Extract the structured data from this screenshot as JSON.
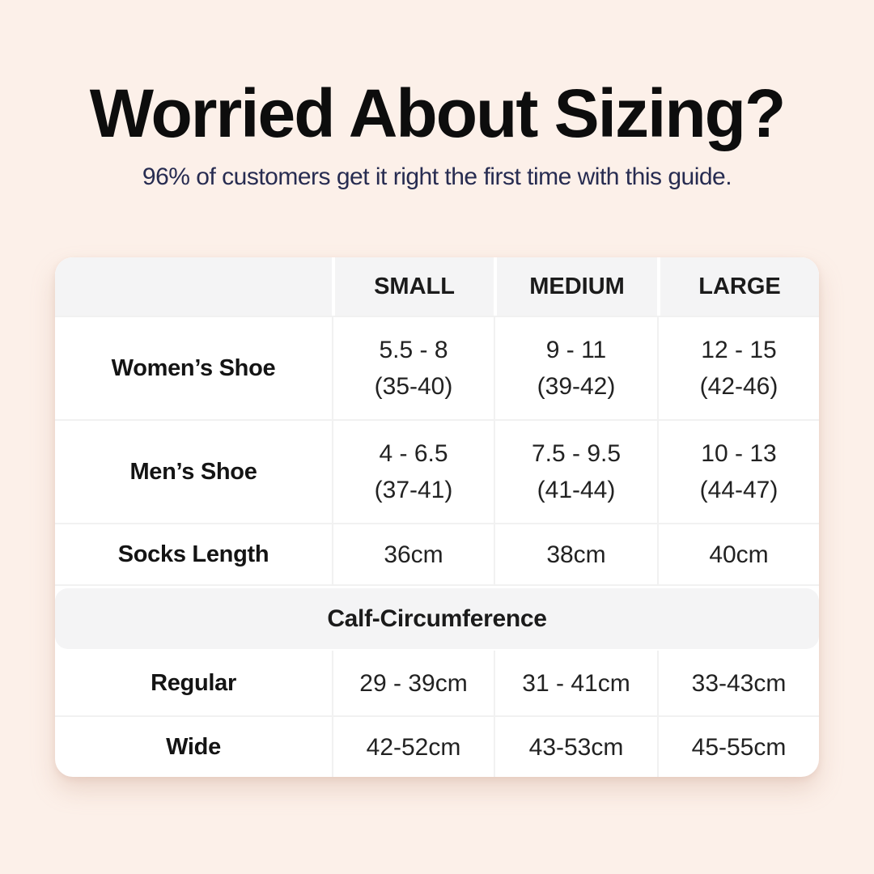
{
  "colors": {
    "background": "#fcf0e9",
    "card_background": "#ffffff",
    "header_cell_background": "#f4f4f5",
    "divider": "#f1f1f1",
    "title_text": "#0d0d0d",
    "subtitle_text": "#272c51",
    "table_text": "#1f1f1f"
  },
  "header": {
    "title": "Worried About Sizing?",
    "subtitle": "96% of customers get it right the first time with this guide."
  },
  "table": {
    "columns": [
      "",
      "SMALL",
      "MEDIUM",
      "LARGE"
    ],
    "shoe_rows": [
      {
        "label": "Women’s Shoe",
        "cells": [
          {
            "line1": "5.5 - 8",
            "line2": "(35-40)"
          },
          {
            "line1": "9 - 11",
            "line2": "(39-42)"
          },
          {
            "line1": "12 - 15",
            "line2": "(42-46)"
          }
        ]
      },
      {
        "label": "Men’s Shoe",
        "cells": [
          {
            "line1": "4 - 6.5",
            "line2": "(37-41)"
          },
          {
            "line1": "7.5 - 9.5",
            "line2": "(41-44)"
          },
          {
            "line1": "10 - 13",
            "line2": "(44-47)"
          }
        ]
      },
      {
        "label": "Socks Length",
        "cells": [
          {
            "line1": "36cm"
          },
          {
            "line1": "38cm"
          },
          {
            "line1": "40cm"
          }
        ]
      }
    ],
    "section_header": "Calf-Circumference",
    "calf_rows": [
      {
        "label": "Regular",
        "cells": [
          {
            "line1": "29 - 39cm"
          },
          {
            "line1": "31 - 41cm"
          },
          {
            "line1": "33-43cm"
          }
        ]
      },
      {
        "label": "Wide",
        "cells": [
          {
            "line1": "42-52cm"
          },
          {
            "line1": "43-53cm"
          },
          {
            "line1": "45-55cm"
          }
        ]
      }
    ]
  },
  "chart_data": {
    "type": "table",
    "title": "Worried About Sizing?",
    "subtitle": "96% of customers get it right the first time with this guide.",
    "columns": [
      "",
      "SMALL",
      "MEDIUM",
      "LARGE"
    ],
    "rows": [
      [
        "Women’s Shoe",
        "5.5 - 8 (35-40)",
        "9 - 11 (39-42)",
        "12 - 15 (42-46)"
      ],
      [
        "Men’s Shoe",
        "4 - 6.5 (37-41)",
        "7.5 - 9.5 (41-44)",
        "10 - 13 (44-47)"
      ],
      [
        "Socks Length",
        "36cm",
        "38cm",
        "40cm"
      ],
      [
        "Calf-Circumference",
        "",
        "",
        ""
      ],
      [
        "Regular",
        "29 - 39cm",
        "31 - 41cm",
        "33-43cm"
      ],
      [
        "Wide",
        "42-52cm",
        "43-53cm",
        "45-55cm"
      ]
    ],
    "layout": {
      "section_row_index": 3,
      "header_row_shaded": true
    }
  }
}
